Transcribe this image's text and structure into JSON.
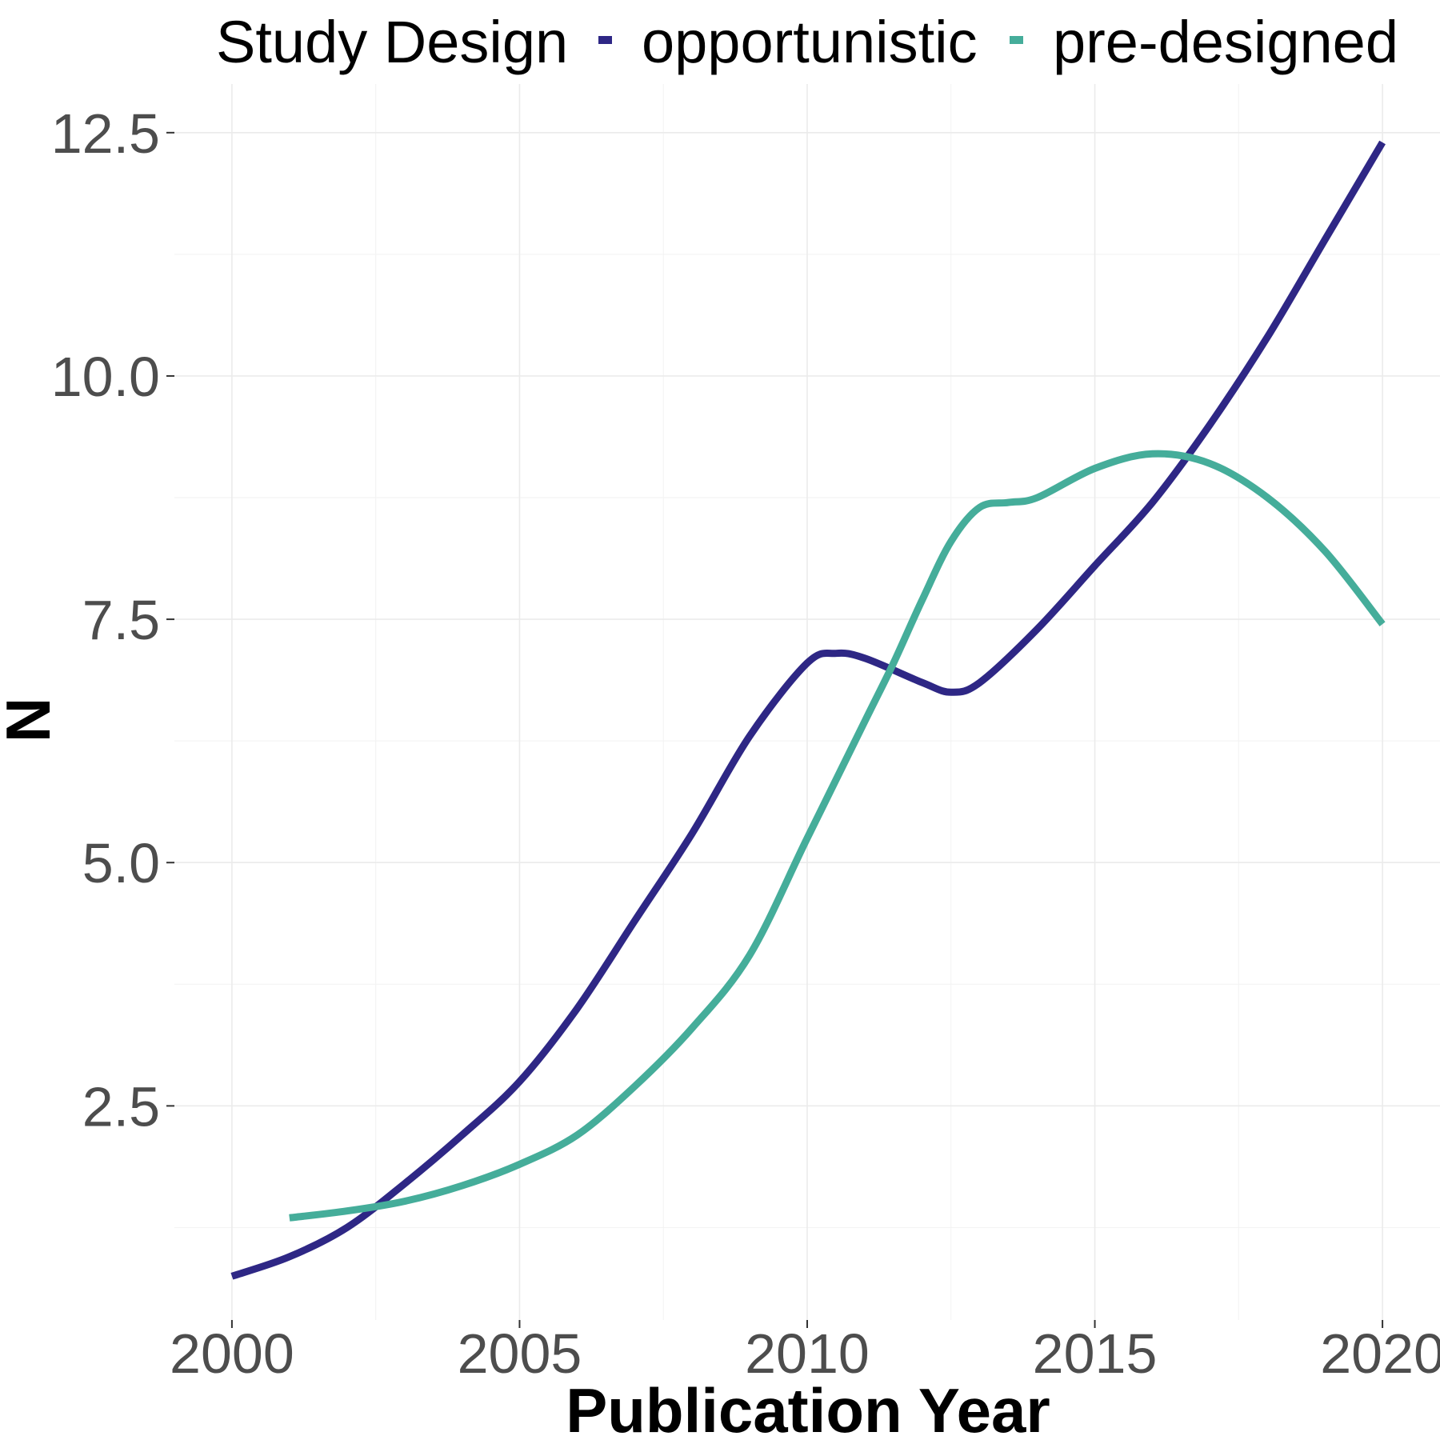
{
  "chart_data": {
    "type": "line",
    "title": "",
    "xlabel": "Publication Year",
    "ylabel": "N",
    "xlim": [
      1999.0,
      2021.0
    ],
    "ylim": [
      0.3,
      13.0
    ],
    "x_ticks": [
      2000,
      2005,
      2010,
      2015,
      2020
    ],
    "x_tick_labels": [
      "2000",
      "2005",
      "2010",
      "2015",
      "2020"
    ],
    "y_ticks": [
      2.5,
      5.0,
      7.5,
      10.0,
      12.5
    ],
    "y_tick_labels": [
      "2.5",
      "5.0",
      "7.5",
      "10.0",
      "12.5"
    ],
    "grid": true,
    "legend": {
      "title": "Study Design",
      "position": "top"
    },
    "series": [
      {
        "name": "opportunistic",
        "color": "#2e2785",
        "x": [
          2000,
          2001,
          2002,
          2003,
          2004,
          2005,
          2006,
          2007,
          2008,
          2009,
          2010,
          2010.5,
          2011,
          2012,
          2012.5,
          2013,
          2014,
          2015,
          2016,
          2017,
          2018,
          2019,
          2020
        ],
        "values": [
          0.75,
          0.95,
          1.25,
          1.7,
          2.2,
          2.75,
          3.5,
          4.4,
          5.3,
          6.3,
          7.05,
          7.15,
          7.1,
          6.85,
          6.75,
          6.85,
          7.4,
          8.05,
          8.7,
          9.5,
          10.4,
          11.4,
          12.4
        ]
      },
      {
        "name": "pre-designed",
        "color": "#45ad9a",
        "x": [
          2001,
          2002,
          2003,
          2004,
          2005,
          2006,
          2007,
          2008,
          2009,
          2010,
          2011,
          2011.5,
          2012,
          2012.5,
          2013,
          2013.5,
          2014,
          2015,
          2016,
          2017,
          2018,
          2019,
          2020
        ],
        "values": [
          1.35,
          1.42,
          1.52,
          1.68,
          1.9,
          2.2,
          2.7,
          3.3,
          4.05,
          5.25,
          6.45,
          7.05,
          7.7,
          8.3,
          8.65,
          8.7,
          8.75,
          9.05,
          9.2,
          9.1,
          8.75,
          8.2,
          7.45
        ]
      }
    ]
  }
}
